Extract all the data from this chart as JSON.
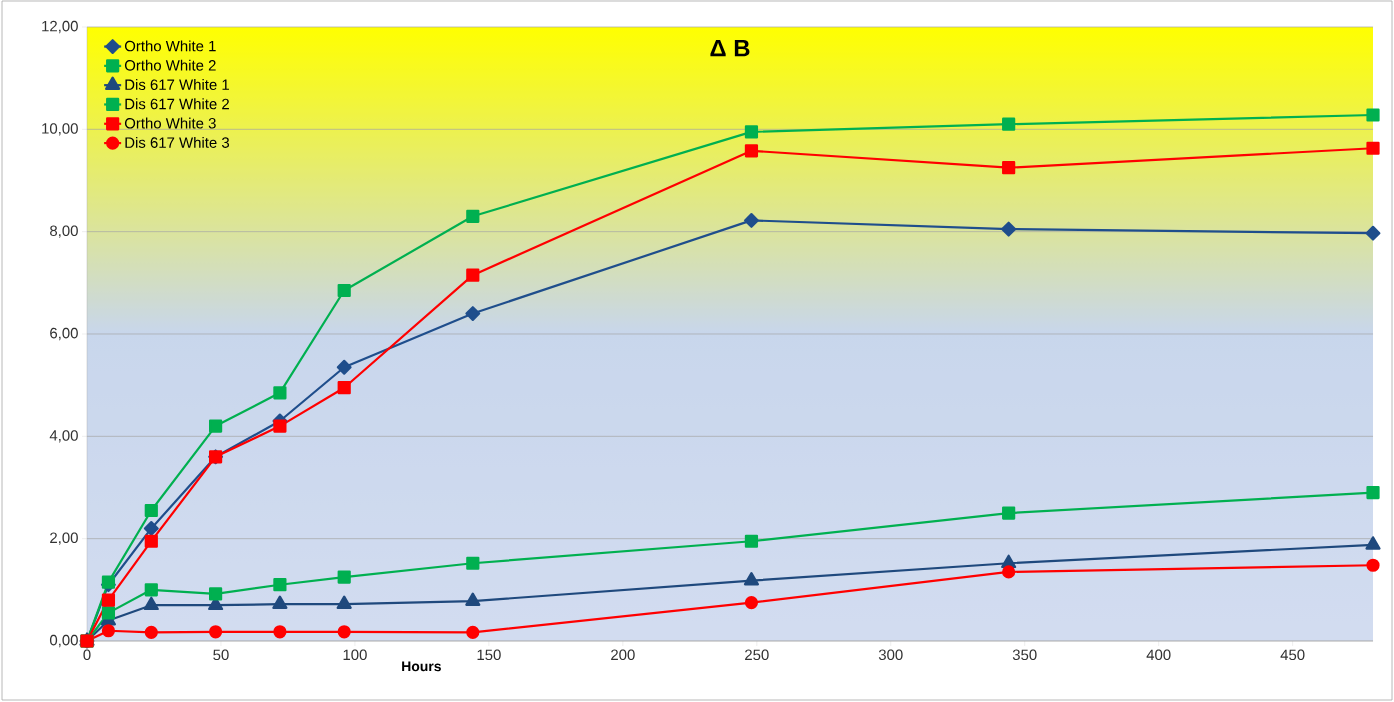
{
  "chart_data": {
    "type": "line",
    "title": "Δ B",
    "xlabel": "Hours",
    "x": [
      0,
      8,
      24,
      48,
      72,
      96,
      144,
      248,
      344,
      480
    ],
    "xlim": [
      0,
      480
    ],
    "xticks": [
      0,
      50,
      100,
      150,
      200,
      250,
      300,
      350,
      400,
      450
    ],
    "ylim": [
      0,
      12
    ],
    "yticks": [
      {
        "value": 0,
        "label": "0,00"
      },
      {
        "value": 2,
        "label": "2,00"
      },
      {
        "value": 4,
        "label": "4,00"
      },
      {
        "value": 6,
        "label": "6,00"
      },
      {
        "value": 8,
        "label": "8,00"
      },
      {
        "value": 10,
        "label": "10,00"
      },
      {
        "value": 12,
        "label": "12,00"
      }
    ],
    "grid": "y",
    "legend": "top left",
    "series": [
      {
        "name": "Ortho White 1",
        "color": "#1f4e8c",
        "marker": "diamond",
        "values": [
          0,
          1.1,
          2.2,
          3.6,
          4.3,
          5.35,
          6.4,
          8.22,
          8.05,
          7.97
        ]
      },
      {
        "name": "Ortho White 2",
        "color": "#00b050",
        "marker": "square",
        "values": [
          0,
          1.15,
          2.55,
          4.2,
          4.85,
          6.85,
          8.3,
          9.95,
          10.1,
          10.28
        ]
      },
      {
        "name": "Dis 617 White 1",
        "color": "#1f497d",
        "marker": "triangle",
        "values": [
          0,
          0.4,
          0.7,
          0.7,
          0.72,
          0.72,
          0.78,
          1.18,
          1.52,
          1.88
        ]
      },
      {
        "name": "Dis 617 White 2",
        "color": "#00b050",
        "marker": "square",
        "values": [
          0,
          0.55,
          1.0,
          0.92,
          1.1,
          1.25,
          1.52,
          1.95,
          2.5,
          2.9
        ]
      },
      {
        "name": "Ortho White 3",
        "color": "#ff0000",
        "marker": "square",
        "values": [
          0,
          0.8,
          1.95,
          3.6,
          4.2,
          4.95,
          7.15,
          9.58,
          9.25,
          9.63
        ]
      },
      {
        "name": "Dis 617 White 3",
        "color": "#ff0000",
        "marker": "circle",
        "values": [
          0,
          0.2,
          0.17,
          0.18,
          0.18,
          0.18,
          0.17,
          0.75,
          1.35,
          1.48
        ]
      }
    ]
  }
}
